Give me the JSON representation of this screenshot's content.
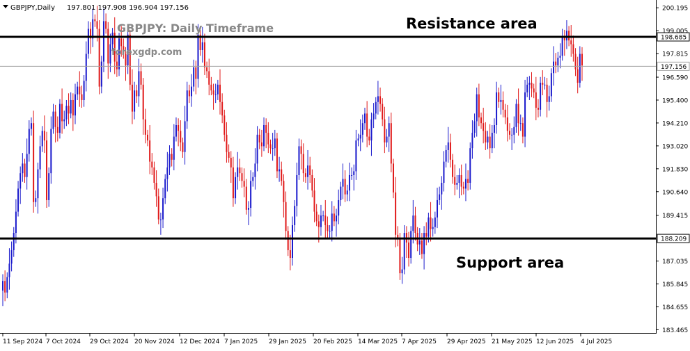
{
  "header": {
    "symbol_info": "GBPJPY,Daily",
    "ohlc": "197.801 197.908 196.904 197.156"
  },
  "annotations": {
    "title": "GBPJPY: Daily Timeframe",
    "watermark": "forexgdp.com",
    "resistance_label": "Resistance area",
    "support_label": "Support area"
  },
  "colors": {
    "bull": "#1a1acc",
    "bear": "#e01818",
    "level_line": "#000000",
    "price_line": "#a0a0a0",
    "axis_text": "#000000",
    "title_text": "#888888"
  },
  "chart_data": {
    "type": "candlestick",
    "y_range": [
      183.3,
      200.6
    ],
    "y_ticks": [
      "200.195",
      "199.005",
      "197.815",
      "196.590",
      "195.400",
      "194.210",
      "193.020",
      "191.830",
      "190.640",
      "189.415",
      "187.035",
      "185.845",
      "184.655",
      "183.465"
    ],
    "x_ticks": [
      "11 Sep 2024",
      "7 Oct 2024",
      "29 Oct 2024",
      "20 Nov 2024",
      "12 Dec 2024",
      "7 Jan 2025",
      "29 Jan 2025",
      "20 Feb 2025",
      "14 Mar 2025",
      "7 Apr 2025",
      "29 Apr 2025",
      "21 May 2025",
      "12 Jun 2025",
      "4 Jul 2025"
    ],
    "resistance": {
      "value": 198.685,
      "label": "198.685"
    },
    "support": {
      "value": 188.209,
      "label": "188.209"
    },
    "current_price": {
      "value": 197.156,
      "label": "197.156"
    },
    "closes": [
      186.0,
      185.4,
      186.2,
      186.9,
      187.6,
      188.5,
      189.6,
      190.8,
      191.6,
      192.1,
      191.4,
      192.6,
      193.9,
      194.2,
      190.1,
      190.3,
      191.8,
      193.0,
      193.8,
      193.3,
      190.2,
      191.6,
      193.9,
      194.8,
      194.0,
      193.7,
      195.2,
      194.3,
      194.4,
      195.1,
      194.7,
      195.4,
      194.6,
      195.7,
      196.1,
      195.7,
      195.4,
      196.4,
      197.8,
      199.1,
      198.6,
      199.6,
      199.5,
      199.1,
      196.1,
      197.4,
      199.5,
      199.1,
      197.3,
      198.3,
      198.9,
      197.4,
      197.0,
      198.6,
      198.2,
      197.8,
      197.2,
      198.8,
      196.2,
      194.8,
      195.9,
      195.6,
      196.9,
      196.2,
      194.4,
      193.6,
      193.3,
      192.2,
      191.9,
      191.1,
      190.4,
      189.2,
      189.2,
      190.3,
      191.3,
      191.9,
      192.6,
      192.3,
      193.5,
      194.1,
      193.8,
      193.2,
      192.7,
      194.3,
      195.9,
      195.6,
      196.1,
      197.1,
      196.5,
      198.8,
      198.0,
      198.4,
      197.1,
      196.9,
      196.2,
      195.9,
      195.7,
      195.7,
      196.2,
      195.3,
      194.6,
      193.6,
      192.7,
      192.4,
      191.9,
      190.3,
      191.4,
      191.9,
      191.6,
      191.2,
      190.9,
      189.7,
      189.8,
      191.2,
      191.4,
      192.1,
      193.6,
      193.2,
      193.0,
      194.1,
      193.7,
      193.1,
      192.9,
      192.9,
      193.4,
      191.7,
      191.8,
      191.2,
      190.1,
      188.6,
      187.6,
      187.2,
      188.9,
      189.9,
      191.5,
      193.0,
      192.6,
      191.6,
      191.4,
      192.0,
      191.5,
      190.7,
      189.6,
      189.1,
      188.8,
      189.4,
      189.4,
      188.9,
      188.6,
      188.6,
      189.5,
      189.1,
      189.4,
      190.2,
      190.9,
      191.3,
      190.5,
      190.7,
      191.5,
      191.5,
      191.7,
      193.3,
      193.4,
      193.6,
      194.2,
      194.7,
      193.5,
      193.3,
      194.4,
      194.7,
      195.3,
      195.6,
      195.2,
      194.4,
      193.2,
      193.5,
      194.2,
      192.1,
      190.6,
      188.4,
      188.2,
      186.4,
      186.6,
      188.5,
      188.0,
      187.2,
      188.6,
      189.4,
      188.5,
      187.9,
      188.1,
      187.4,
      188.5,
      188.3,
      189.3,
      188.7,
      188.8,
      189.3,
      190.2,
      190.5,
      191.1,
      192.2,
      192.8,
      193.2,
      192.3,
      191.4,
      191.0,
      191.1,
      191.5,
      190.9,
      190.8,
      191.3,
      191.1,
      192.9,
      193.7,
      194.3,
      195.7,
      194.5,
      194.2,
      193.8,
      193.2,
      193.5,
      192.9,
      193.7,
      194.1,
      195.8,
      195.3,
      195.4,
      194.9,
      194.5,
      193.8,
      193.6,
      193.6,
      194.0,
      195.2,
      194.2,
      194.2,
      193.5,
      195.8,
      196.2,
      196.3,
      196.0,
      195.8,
      195.0,
      194.9,
      196.3,
      196.2,
      196.2,
      195.3,
      195.6,
      196.8,
      197.4,
      197.2,
      197.6,
      197.7,
      198.7,
      198.5,
      199.0,
      198.5,
      198.3,
      197.8,
      197.0,
      196.3,
      197.8,
      197.2
    ]
  }
}
